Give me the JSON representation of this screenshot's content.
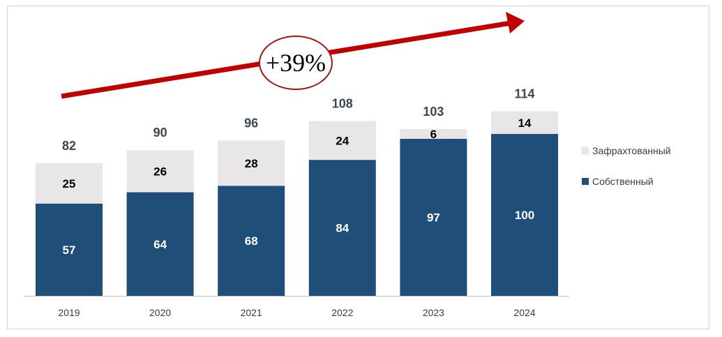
{
  "chart_data": {
    "type": "bar",
    "stacked": true,
    "categories": [
      "2019",
      "2020",
      "2021",
      "2022",
      "2023",
      "2024"
    ],
    "series": [
      {
        "name": "Собственный",
        "values": [
          57,
          64,
          68,
          84,
          97,
          100
        ],
        "color": "#1f4e79"
      },
      {
        "name": "Зафрахтованный",
        "values": [
          25,
          26,
          28,
          24,
          6,
          14
        ],
        "color": "#e8e6e6"
      }
    ],
    "totals": [
      82,
      90,
      96,
      108,
      103,
      114
    ],
    "ylim": [
      0,
      114
    ],
    "grid": false,
    "legend_position": "right",
    "annotation": {
      "text": "+39%",
      "arrow_color": "#c00000",
      "ellipse_color": "#a31515"
    },
    "title": "",
    "xlabel": "",
    "ylabel": ""
  }
}
